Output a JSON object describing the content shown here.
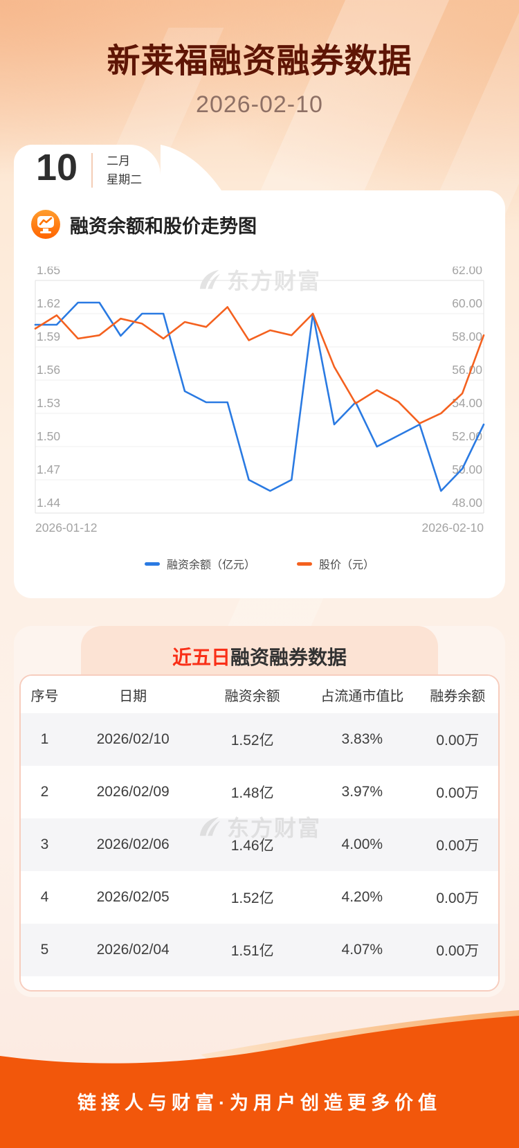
{
  "header": {
    "title": "新莱福融资融券数据",
    "date": "2026-02-10"
  },
  "calendar": {
    "day": "10",
    "month": "二月",
    "weekday": "星期二"
  },
  "chart_section": {
    "title": "融资余额和股价走势图",
    "watermark": "东方财富"
  },
  "chart_data": {
    "type": "line",
    "title": "融资余额和股价走势图",
    "num_points": 22,
    "x_labels_visible": [
      "2026-01-12",
      "2026-02-10"
    ],
    "left_axis": {
      "min": 1.44,
      "max": 1.65,
      "ticks": [
        "1.65",
        "1.62",
        "1.59",
        "1.56",
        "1.53",
        "1.50",
        "1.47",
        "1.44"
      ]
    },
    "right_axis": {
      "min": 48,
      "max": 62,
      "ticks": [
        "62.00",
        "60.00",
        "58.00",
        "56.00",
        "54.00",
        "52.00",
        "50.00",
        "48.00"
      ]
    },
    "grid": true,
    "legend_position": "bottom",
    "series": [
      {
        "name": "融资余额（亿元）",
        "axis": "left",
        "color": "#2a7ae2",
        "values": [
          1.61,
          1.61,
          1.63,
          1.63,
          1.6,
          1.62,
          1.62,
          1.55,
          1.54,
          1.54,
          1.47,
          1.46,
          1.47,
          1.62,
          1.52,
          1.54,
          1.5,
          1.51,
          1.52,
          1.46,
          1.48,
          1.52
        ]
      },
      {
        "name": "股价（元）",
        "axis": "right",
        "color": "#f4611f",
        "values": [
          59.1,
          59.9,
          58.5,
          58.7,
          59.7,
          59.4,
          58.5,
          59.5,
          59.2,
          60.4,
          58.4,
          59.0,
          58.7,
          60.0,
          56.8,
          54.6,
          55.4,
          54.7,
          53.4,
          54.0,
          55.2,
          58.7
        ]
      }
    ]
  },
  "table_section": {
    "title_highlight": "近五日",
    "title_rest": "融资融券数据",
    "watermark": "东方财富",
    "columns": [
      "序号",
      "日期",
      "融资余额",
      "占流通市值比",
      "融券余额"
    ],
    "rows": [
      [
        "1",
        "2026/02/10",
        "1.52亿",
        "3.83%",
        "0.00万"
      ],
      [
        "2",
        "2026/02/09",
        "1.48亿",
        "3.97%",
        "0.00万"
      ],
      [
        "3",
        "2026/02/06",
        "1.46亿",
        "4.00%",
        "0.00万"
      ],
      [
        "4",
        "2026/02/05",
        "1.52亿",
        "4.20%",
        "0.00万"
      ],
      [
        "5",
        "2026/02/04",
        "1.51亿",
        "4.07%",
        "0.00万"
      ]
    ]
  },
  "footer": {
    "slogan": "链接人与财富·为用户创造更多价值"
  },
  "colors": {
    "title_text": "#5e1505",
    "highlight_red": "#f92f17",
    "financing_blue": "#2a7ae2",
    "price_orange": "#f4611f",
    "footer_orange": "#f2570b",
    "banner_peach": "#fce3d4",
    "card_white": "#ffffff",
    "alt_row": "#f5f5f7",
    "axis_gray": "#a3a3a3"
  }
}
